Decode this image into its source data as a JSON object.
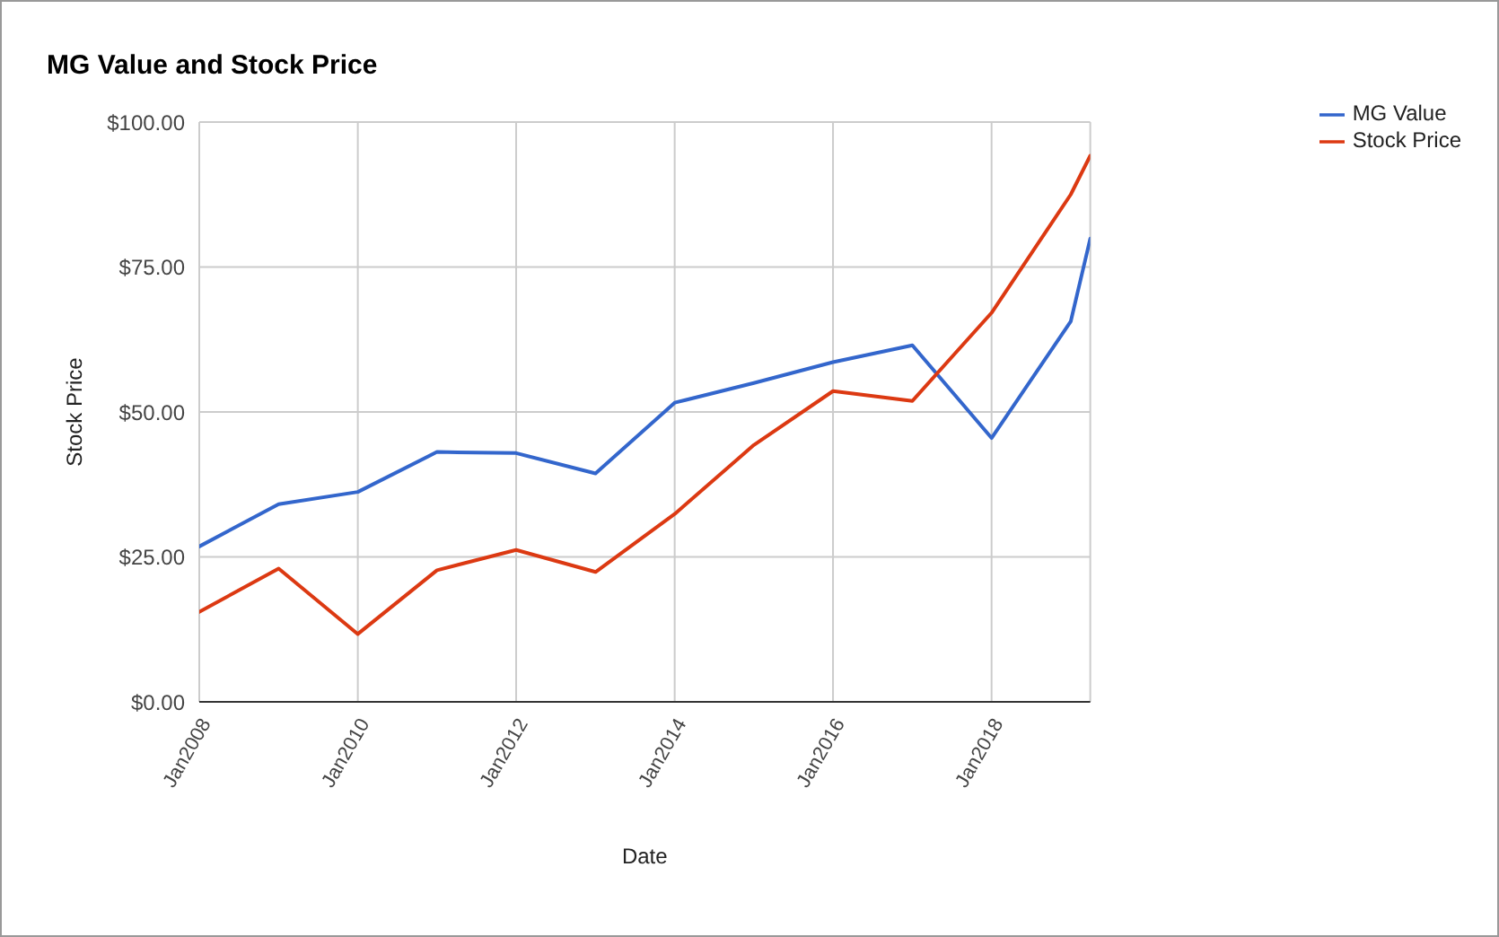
{
  "chart_data": {
    "type": "line",
    "title": "MG Value and Stock Price",
    "xlabel": "Date",
    "ylabel": "Stock Price",
    "x": [
      "2008-01",
      "2009-01",
      "2010-01",
      "2011-01",
      "2012-01",
      "2013-01",
      "2014-01",
      "2015-01",
      "2016-01",
      "2017-01",
      "2018-01",
      "2019-01",
      "2019-04"
    ],
    "series": [
      {
        "name": "MG Value",
        "color": "#3366cc",
        "values": [
          26.8,
          34.1,
          36.2,
          43.1,
          42.9,
          39.4,
          51.6,
          55,
          58.6,
          61.5,
          45.5,
          65.6,
          79.9
        ]
      },
      {
        "name": "Stock Price",
        "color": "#dc3912",
        "values": [
          15.5,
          23,
          11.7,
          22.7,
          26.2,
          22.4,
          32.4,
          44.3,
          53.6,
          51.9,
          67.1,
          87.5,
          94.2
        ]
      }
    ],
    "xlim": [
      "2008-01",
      "2019-04"
    ],
    "xticks": [
      {
        "value": "2008-01",
        "label": "Jan2008"
      },
      {
        "value": "2010-01",
        "label": "Jan2010"
      },
      {
        "value": "2012-01",
        "label": "Jan2012"
      },
      {
        "value": "2014-01",
        "label": "Jan2014"
      },
      {
        "value": "2016-01",
        "label": "Jan2016"
      },
      {
        "value": "2018-01",
        "label": "Jan2018"
      }
    ],
    "ylim": [
      0,
      100
    ],
    "yticks": [
      {
        "value": 0,
        "label": "$0.00"
      },
      {
        "value": 25,
        "label": "$25.00"
      },
      {
        "value": 50,
        "label": "$50.00"
      },
      {
        "value": 75,
        "label": "$75.00"
      },
      {
        "value": 100,
        "label": "$100.00"
      }
    ],
    "grid": true,
    "legend": "top right",
    "marker": "none",
    "line_style": "solid"
  }
}
